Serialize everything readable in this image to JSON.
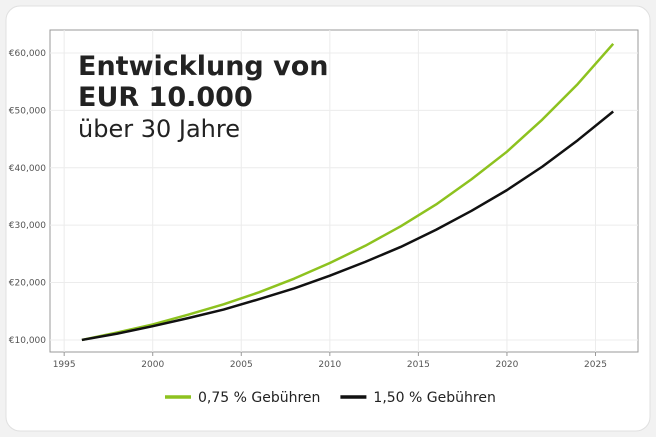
{
  "chart_data": {
    "type": "line",
    "title_lines": [
      "Entwicklung von",
      "EUR 10.000"
    ],
    "subtitle": "über 30 Jahre",
    "x": [
      1996,
      1998,
      2000,
      2002,
      2004,
      2006,
      2008,
      2010,
      2012,
      2014,
      2016,
      2018,
      2020,
      2022,
      2024,
      2026
    ],
    "series": [
      {
        "name": "0,75 % Gebühren",
        "color": "#8dc21f",
        "values": [
          10000,
          11300,
          12700,
          14400,
          16200,
          18300,
          20700,
          23400,
          26400,
          29800,
          33600,
          38000,
          42800,
          48400,
          54600,
          61600
        ]
      },
      {
        "name": "1,50 % Gebühren",
        "color": "#111111",
        "values": [
          10000,
          11100,
          12400,
          13800,
          15300,
          17100,
          19000,
          21200,
          23600,
          26200,
          29200,
          32500,
          36100,
          40200,
          44800,
          49800
        ]
      }
    ],
    "xlim": [
      1994.2,
      2027.4
    ],
    "xticks": [
      1995,
      2000,
      2005,
      2010,
      2015,
      2020,
      2025
    ],
    "ylim": [
      7900,
      64000
    ],
    "yticks": [
      {
        "value": 10000,
        "label": "€10,000"
      },
      {
        "value": 20000,
        "label": "€20,000"
      },
      {
        "value": 30000,
        "label": "€30,000"
      },
      {
        "value": 40000,
        "label": "€40,000"
      },
      {
        "value": 50000,
        "label": "€50,000"
      },
      {
        "value": 60000,
        "label": "€60,000"
      }
    ],
    "grid": true,
    "legend": "bottom"
  }
}
